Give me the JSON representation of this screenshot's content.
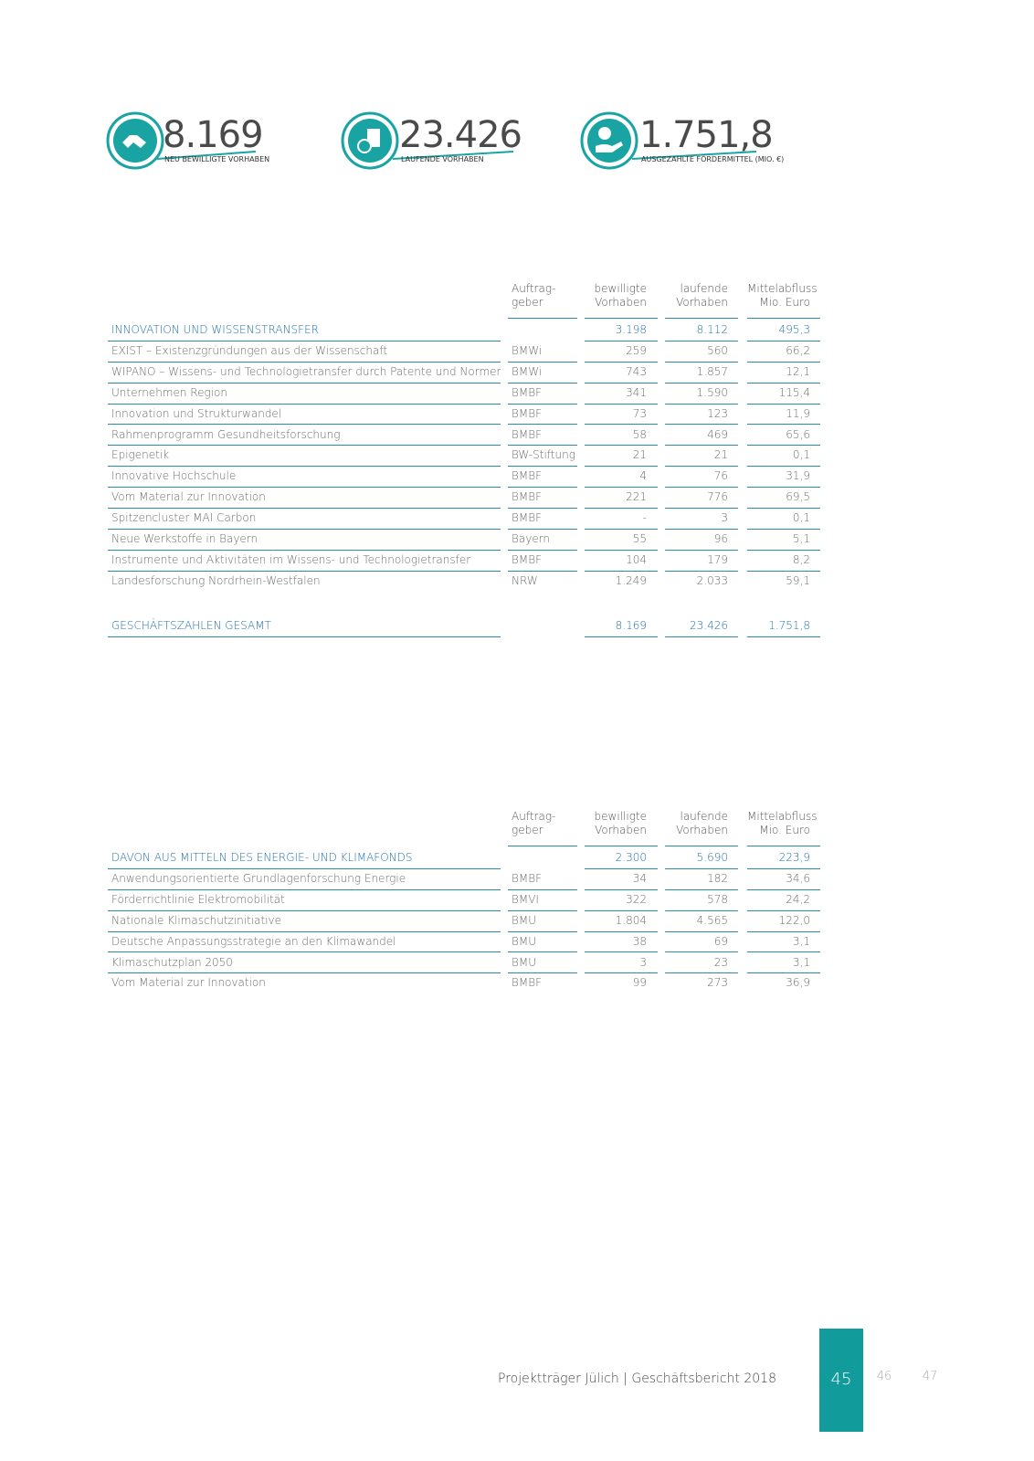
{
  "kpis": [
    {
      "value": "8.169",
      "label": "NEU BEWILLIGTE VORHABEN"
    },
    {
      "value": "23.426",
      "label": "LAUFENDE VORHABEN"
    },
    {
      "value": "1.751,8",
      "label": "AUSGEZAHLTE FÖRDERMITTEL (MIO. €)"
    }
  ],
  "table1": {
    "columns": [
      [
        "Auftrag-",
        "geber"
      ],
      [
        "bewilligte",
        "Vorhaben"
      ],
      [
        "laufende",
        "Vorhaben"
      ],
      [
        "Mittelabfluss",
        "Mio. Euro"
      ]
    ],
    "section": {
      "label": "INNOVATION UND WISSENSTRANSFER",
      "values": [
        "3.198",
        "8.112",
        "495,3"
      ]
    },
    "rows": [
      [
        "EXIST – Existenzgründungen aus der Wissenschaft",
        "BMWi",
        "259",
        "560",
        "66,2"
      ],
      [
        "WIPANO – Wissens- und Technologietransfer durch Patente und Normen",
        "BMWi",
        "743",
        "1.857",
        "12,1"
      ],
      [
        "Unternehmen Region",
        "BMBF",
        "341",
        "1.590",
        "115,4"
      ],
      [
        "Innovation und Strukturwandel",
        "BMBF",
        "73",
        "123",
        "11,9"
      ],
      [
        "Rahmenprogramm Gesundheitsforschung",
        "BMBF",
        "58",
        "469",
        "65,6"
      ],
      [
        "Epigenetik",
        "BW-Stiftung",
        "21",
        "21",
        "0,1"
      ],
      [
        "Innovative Hochschule",
        "BMBF",
        "4",
        "76",
        "31,9"
      ],
      [
        "Vom Material zur Innovation",
        "BMBF",
        "221",
        "776",
        "69,5"
      ],
      [
        "Spitzencluster MAI Carbon",
        "BMBF",
        "-",
        "3",
        "0,1"
      ],
      [
        "Neue Werkstoffe in Bayern",
        "Bayern",
        "55",
        "96",
        "5,1"
      ],
      [
        "Instrumente und Aktivitäten im Wissens- und Technologietransfer",
        "BMBF",
        "104",
        "179",
        "8,2"
      ],
      [
        "Landesforschung Nordrhein-Westfalen",
        "NRW",
        "1.249",
        "2.033",
        "59,1"
      ]
    ],
    "total": {
      "label": "GESCHÄFTSZAHLEN GESAMT",
      "values": [
        "8.169",
        "23.426",
        "1.751,8"
      ]
    }
  },
  "table2": {
    "columns": [
      [
        "Auftrag-",
        "geber"
      ],
      [
        "bewilligte",
        "Vorhaben"
      ],
      [
        "laufende",
        "Vorhaben"
      ],
      [
        "Mittelabfluss",
        "Mio. Euro"
      ]
    ],
    "section": {
      "label": "DAVON AUS MITTELN DES ENERGIE- UND KLIMAFONDS",
      "values": [
        "2.300",
        "5.690",
        "223,9"
      ]
    },
    "rows": [
      [
        "Anwendungsorientierte Grundlagenforschung Energie",
        "BMBF",
        "34",
        "182",
        "34,6"
      ],
      [
        "Förderrichtlinie Elektromobilität",
        "BMVI",
        "322",
        "578",
        "24,2"
      ],
      [
        "Nationale Klimaschutzinitiative",
        "BMU",
        "1.804",
        "4.565",
        "122,0"
      ],
      [
        "Deutsche Anpassungsstrategie an den Klimawandel",
        "BMU",
        "38",
        "69",
        "3,1"
      ],
      [
        "Klimaschutzplan 2050",
        "BMU",
        "3",
        "23",
        "3,1"
      ],
      [
        "Vom Material zur Innovation",
        "BMBF",
        "99",
        "273",
        "36,9"
      ]
    ]
  },
  "footer": {
    "text": "Projektträger Jülich | Geschäftsbericht 2018",
    "pages": [
      "45",
      "46",
      "47"
    ]
  }
}
